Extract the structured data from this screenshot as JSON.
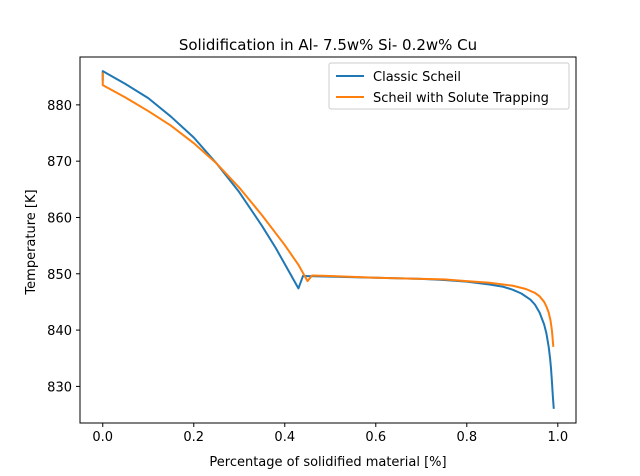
{
  "chart_data": {
    "type": "line",
    "title": "Solidification in Al- 7.5w% Si- 0.2w% Cu",
    "xlabel": "Percentage of solidified material [%]",
    "ylabel": "Temperature [K]",
    "xlim": [
      -0.05,
      1.04
    ],
    "ylim": [
      823.5,
      888.5
    ],
    "xticks": [
      0.0,
      0.2,
      0.4,
      0.6,
      0.8,
      1.0
    ],
    "xtick_labels": [
      "0.0",
      "0.2",
      "0.4",
      "0.6",
      "0.8",
      "1.0"
    ],
    "yticks": [
      830,
      840,
      850,
      860,
      870,
      880
    ],
    "ytick_labels": [
      "830",
      "840",
      "850",
      "860",
      "870",
      "880"
    ],
    "grid": false,
    "legend_position": "top-right",
    "series": [
      {
        "name": "Classic Scheil",
        "color": "#1f77b4",
        "x": [
          0.0,
          0.0,
          0.05,
          0.1,
          0.15,
          0.2,
          0.25,
          0.3,
          0.35,
          0.38,
          0.41,
          0.43,
          0.44,
          0.5,
          0.6,
          0.7,
          0.75,
          0.8,
          0.85,
          0.88,
          0.9,
          0.92,
          0.94,
          0.95,
          0.96,
          0.97,
          0.975,
          0.98,
          0.983,
          0.985,
          0.987,
          0.989,
          0.991
        ],
        "y": [
          884.5,
          886.0,
          883.7,
          881.2,
          877.9,
          874.2,
          869.6,
          864.5,
          858.5,
          854.6,
          850.3,
          847.4,
          849.6,
          849.5,
          849.3,
          849.1,
          848.9,
          848.6,
          848.1,
          847.7,
          847.2,
          846.5,
          845.4,
          844.5,
          843.1,
          841.0,
          839.4,
          837.0,
          835.0,
          833.3,
          831.0,
          828.4,
          826.2
        ]
      },
      {
        "name": "Scheil with Solute Trapping",
        "color": "#ff7f0e",
        "x": [
          0.0,
          0.0,
          0.05,
          0.1,
          0.15,
          0.2,
          0.25,
          0.3,
          0.35,
          0.4,
          0.43,
          0.45,
          0.46,
          0.5,
          0.6,
          0.7,
          0.75,
          0.8,
          0.85,
          0.9,
          0.93,
          0.95,
          0.96,
          0.97,
          0.975,
          0.98,
          0.984,
          0.987,
          0.99
        ],
        "y": [
          885.6,
          883.5,
          881.3,
          878.9,
          876.3,
          873.2,
          869.6,
          865.3,
          860.4,
          855.1,
          851.6,
          848.7,
          849.7,
          849.6,
          849.3,
          849.1,
          849.0,
          848.7,
          848.4,
          847.9,
          847.3,
          846.6,
          846.0,
          845.0,
          844.2,
          843.1,
          841.7,
          840.0,
          837.2
        ]
      }
    ]
  }
}
